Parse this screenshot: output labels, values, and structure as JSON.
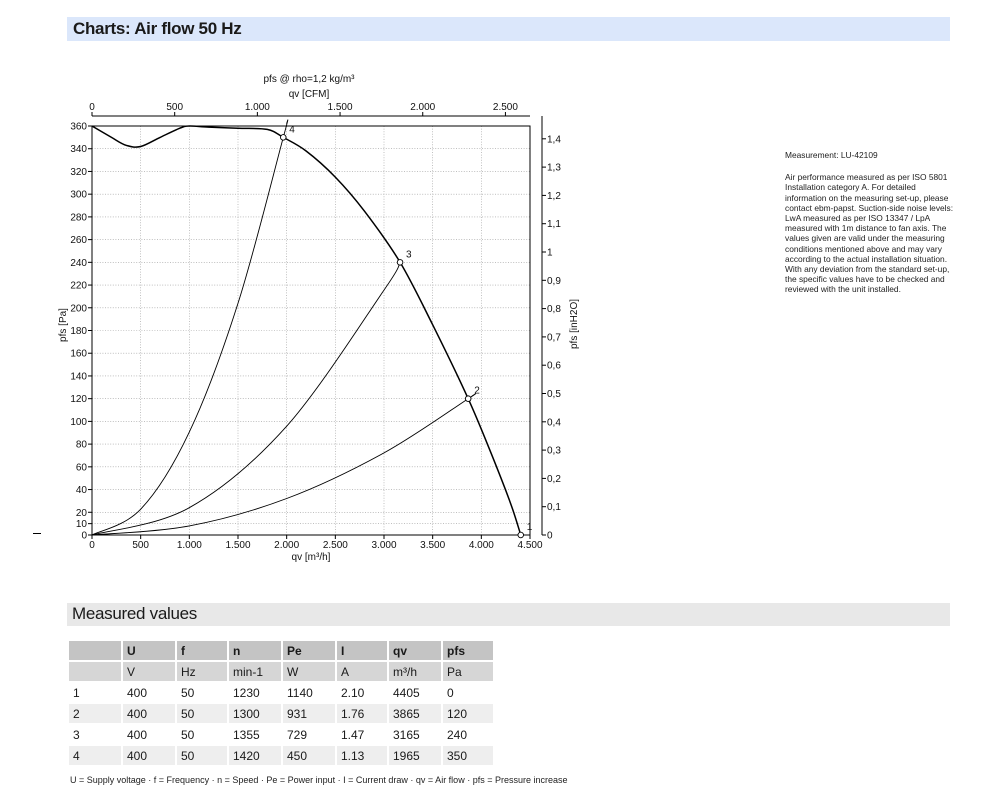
{
  "page_title": "Charts: Air flow 50 Hz",
  "chart_data": {
    "type": "line",
    "title": "pfs @ rho=1,2 kg/m³",
    "xlabel": "qv [m³/h]",
    "x2label": "qv [CFM]",
    "ylabel": "pfs [Pa]",
    "y2label": "pfs [inH2O]",
    "xlim": [
      0,
      4500
    ],
    "ylim": [
      0,
      360
    ],
    "x_ticks": [
      "0",
      "500",
      "1.000",
      "1.500",
      "2.000",
      "2.500",
      "3.000",
      "3.500",
      "4.000",
      "4.500"
    ],
    "x2_ticks": [
      "0",
      "500",
      "1.000",
      "1.500",
      "2.000",
      "2.500"
    ],
    "x2_tick_values": [
      0,
      500,
      1000,
      1500,
      2000,
      2500
    ],
    "y_ticks": [
      "0",
      "10",
      "20",
      "40",
      "60",
      "80",
      "100",
      "120",
      "140",
      "160",
      "180",
      "200",
      "220",
      "240",
      "260",
      "280",
      "300",
      "320",
      "340",
      "360"
    ],
    "y_tick_values": [
      0,
      10,
      20,
      40,
      60,
      80,
      100,
      120,
      140,
      160,
      180,
      200,
      220,
      240,
      260,
      280,
      300,
      320,
      340,
      360
    ],
    "y2_ticks": [
      "0",
      "0,1",
      "0,2",
      "0,3",
      "0,4",
      "0,5",
      "0,6",
      "0,7",
      "0,8",
      "0,9",
      "1",
      "1,1",
      "1,2",
      "1,3",
      "1,4"
    ],
    "y2_tick_values": [
      0,
      0.1,
      0.2,
      0.3,
      0.4,
      0.5,
      0.6,
      0.7,
      0.8,
      0.9,
      1,
      1.1,
      1.2,
      1.3,
      1.4
    ],
    "grid": true,
    "series": [
      {
        "name": "",
        "x": [
          0,
          200,
          350,
          500,
          700,
          900,
          1000,
          1200,
          1500,
          1800,
          1965,
          2200,
          2500,
          2800,
          3165,
          3500,
          3865,
          4100,
          4300,
          4405
        ],
        "y": [
          360,
          350,
          343,
          342,
          350,
          358,
          360,
          359,
          358,
          357,
          350,
          338,
          315,
          285,
          240,
          185,
          120,
          72,
          28,
          0
        ]
      },
      {
        "name": "",
        "x": [
          0,
          500,
          1000,
          1500,
          1965,
          2000
        ],
        "y": [
          0,
          22.7,
          90.6,
          203.9,
          350,
          362.4
        ]
      },
      {
        "name": "",
        "x": [
          0,
          1000,
          2000,
          3000,
          3165
        ],
        "y": [
          0,
          24,
          95.8,
          215.6,
          240
        ]
      },
      {
        "name": "",
        "x": [
          0,
          1000,
          2000,
          3000,
          3865,
          3900
        ],
        "y": [
          0,
          8.0,
          32.1,
          72.3,
          120,
          122.2
        ]
      }
    ],
    "operating_points": [
      {
        "label": "1",
        "x": 4405,
        "y": 0
      },
      {
        "label": "2",
        "x": 3865,
        "y": 120
      },
      {
        "label": "3",
        "x": 3165,
        "y": 240
      },
      {
        "label": "4",
        "x": 1965,
        "y": 350
      }
    ]
  },
  "side_note": {
    "measurement": "Measurement: LU-42109",
    "text": "Air performance measured as per ISO 5801 Installation category A. For detailed information on the measuring set-up, please contact ebm-papst. Suction-side noise levels: LwA measured as per ISO 13347 / LpA measured with 1m distance to fan axis. The values given are valid under the measuring conditions mentioned above and may vary according to the actual installation situation. With any deviation from the standard set-up, the specific values have to be checked and reviewed with the unit installed."
  },
  "measured_values": {
    "title": "Measured values",
    "headers": [
      "",
      "U",
      "f",
      "n",
      "Pe",
      "I",
      "qv",
      "pfs"
    ],
    "units": [
      "",
      "V",
      "Hz",
      "min-1",
      "W",
      "A",
      "m³/h",
      "Pa"
    ],
    "rows": [
      [
        "1",
        "400",
        "50",
        "1230",
        "1140",
        "2.10",
        "4405",
        "0"
      ],
      [
        "2",
        "400",
        "50",
        "1300",
        "931",
        "1.76",
        "3865",
        "120"
      ],
      [
        "3",
        "400",
        "50",
        "1355",
        "729",
        "1.47",
        "3165",
        "240"
      ],
      [
        "4",
        "400",
        "50",
        "1420",
        "450",
        "1.13",
        "1965",
        "350"
      ]
    ]
  },
  "legend_text": "U = Supply voltage · f = Frequency · n = Speed · Pe = Power input · I = Current draw · qv = Air flow · pfs = Pressure increase"
}
